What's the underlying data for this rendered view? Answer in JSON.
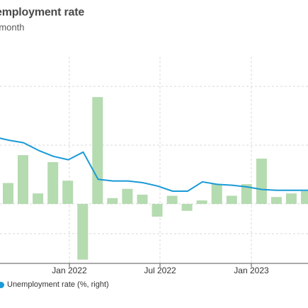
{
  "colors": {
    "bar": "#b5dbb0",
    "line": "#1a9ad6",
    "grid": "#d9d9d9",
    "background": "#ffffff"
  },
  "chart_data": {
    "type": "bar",
    "title": "employment rate",
    "subtitle": "-month",
    "x_tick_labels": [
      "Jan 2022",
      "Jul 2022",
      "Jan 2023"
    ],
    "grid": true,
    "legend_placement": "bottom-left",
    "series": [
      {
        "type": "bar",
        "values": [
          1.8,
          4.2,
          0.9,
          3.6,
          2.0,
          -4.8,
          9.2,
          0.5,
          1.3,
          0.8,
          -1.1,
          0.7,
          -0.6,
          0.3,
          1.7,
          0.7,
          1.7,
          3.9,
          0.6,
          0.9,
          1.1
        ]
      },
      {
        "type": "line",
        "name": "Unemployment rate (%, right)",
        "values": [
          3.95,
          3.75,
          3.6,
          3.15,
          2.8,
          2.6,
          3.05,
          1.45,
          1.35,
          1.35,
          1.25,
          1.05,
          0.75,
          0.75,
          1.3,
          1.15,
          1.1,
          1.0,
          0.85,
          0.8,
          0.8,
          0.8,
          0.8
        ]
      }
    ]
  },
  "legend": {
    "items": [
      {
        "label": "Unemployment rate (%, right)"
      }
    ]
  }
}
